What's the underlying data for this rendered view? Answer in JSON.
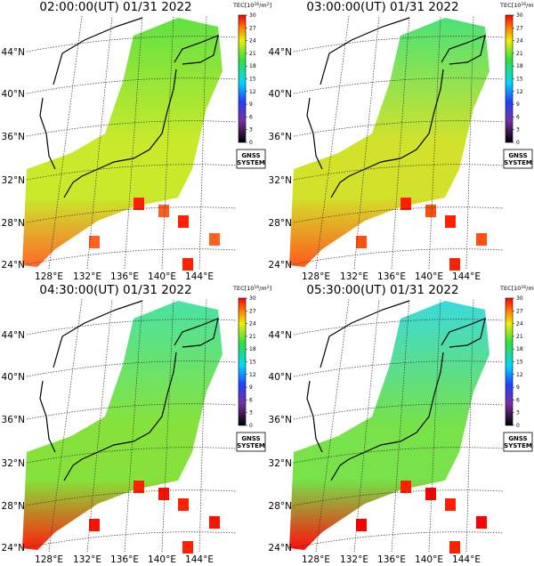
{
  "panels": [
    {
      "title": "02:00:00(UT) 01/31 2022"
    },
    {
      "title": "03:00:00(UT) 01/31 2022"
    },
    {
      "title": "04:30:00(UT) 01/31 2022"
    },
    {
      "title": "05:30:00(UT) 01/31 2022"
    }
  ],
  "map": {
    "lat_labels": [
      "44°N",
      "40°N",
      "36°N",
      "32°N",
      "28°N",
      "24°N"
    ],
    "lon_labels": [
      "128°E",
      "132°E",
      "136°E",
      "140°E",
      "144°E"
    ],
    "colorbar_label": [
      "TEC[10",
      "16",
      "/m",
      "2",
      "]"
    ],
    "colorbar_ticks": [
      0,
      3,
      6,
      9,
      12,
      15,
      18,
      21,
      24,
      27,
      30
    ],
    "badge": [
      "GNSS",
      "SYSTEM"
    ]
  }
}
